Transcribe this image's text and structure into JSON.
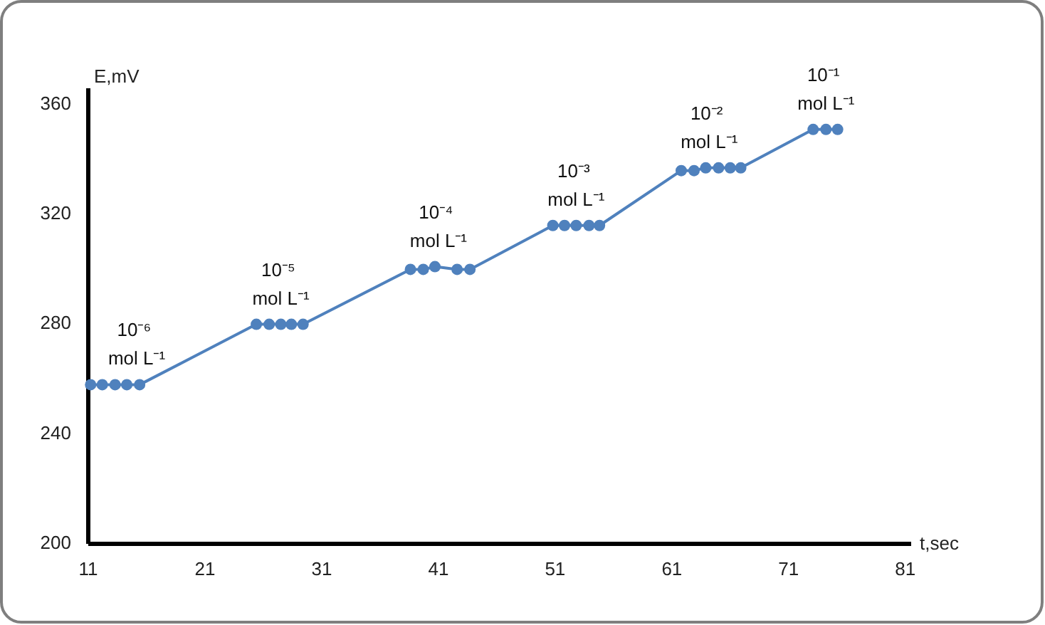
{
  "chart_data": {
    "type": "line",
    "xlabel": "t,sec",
    "ylabel": "E,mV",
    "xlim": [
      11,
      81.5
    ],
    "ylim": [
      200,
      366
    ],
    "xticks": [
      11,
      21,
      31,
      41,
      51,
      61,
      71,
      81
    ],
    "yticks": [
      200,
      240,
      280,
      320,
      360
    ],
    "grid": false,
    "marker": "circle",
    "line_style": "solid",
    "series": [
      {
        "color": "#4f81bd",
        "x": [
          11.2,
          12.2,
          13.3,
          14.3,
          15.4,
          25.4,
          26.5,
          27.5,
          28.4,
          29.4,
          38.6,
          39.7,
          40.7,
          42.6,
          43.7,
          50.8,
          51.8,
          52.8,
          53.9,
          54.8,
          61.8,
          62.9,
          63.9,
          65.0,
          66.0,
          66.9,
          73.1,
          74.2,
          75.2
        ],
        "values": [
          258,
          258,
          258,
          258,
          258,
          280,
          280,
          280,
          280,
          280,
          300,
          300,
          301,
          300,
          300,
          316,
          316,
          316,
          316,
          316,
          336,
          336,
          337,
          337,
          337,
          337,
          351,
          351,
          351
        ]
      }
    ],
    "annotations": [
      {
        "text": "10⁻⁶ mol L⁻¹",
        "x": 13.3,
        "y": 258
      },
      {
        "text": "10⁻⁵ mol L⁻¹",
        "x": 27.5,
        "y": 280
      },
      {
        "text": "10⁻⁴ mol L⁻¹",
        "x": 41,
        "y": 301
      },
      {
        "text": "10⁻³ mol L⁻¹",
        "x": 52.8,
        "y": 316
      },
      {
        "text": "10⁻² mol L⁻¹",
        "x": 64.2,
        "y": 337
      },
      {
        "text": "10⁻¹ mol L⁻¹",
        "x": 74.2,
        "y": 351
      }
    ]
  }
}
